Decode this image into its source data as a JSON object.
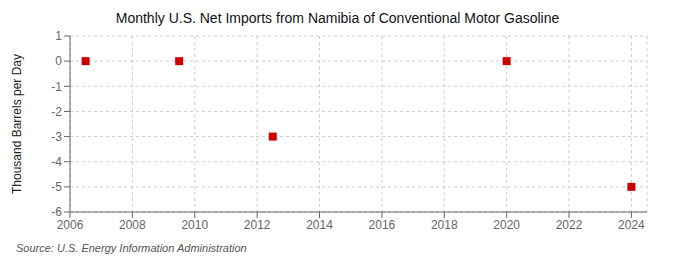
{
  "chart_data": {
    "type": "scatter",
    "title": "Monthly U.S. Net Imports from Namibia of Conventional Motor Gasoline",
    "y_label": "Thousand Barrels per Day",
    "annotations": [
      "Source: U.S. Energy Information Administration"
    ],
    "x": [
      2006.5,
      2009.5,
      2012.5,
      2020.0,
      2024.0
    ],
    "values": [
      0.0,
      0.0,
      -3.0,
      0.0,
      -5.0
    ],
    "color": "#cc0000",
    "marker": "square",
    "xlim": [
      2006,
      2024.5
    ],
    "ylim": [
      -6,
      1
    ],
    "xticks": [
      2006,
      2008,
      2010,
      2012,
      2014,
      2016,
      2018,
      2020,
      2022,
      2024
    ],
    "yticks": [
      1,
      0,
      -1,
      -2,
      -3,
      -4,
      -5,
      -6
    ],
    "grid": true
  }
}
